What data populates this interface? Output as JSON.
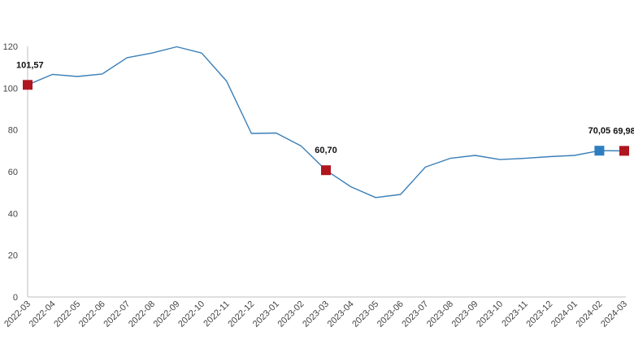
{
  "chart_data": {
    "type": "line",
    "title": "",
    "xlabel": "",
    "ylabel": "",
    "ylim": [
      0,
      120
    ],
    "yticks": [
      0,
      20,
      40,
      60,
      80,
      100,
      120
    ],
    "grid": false,
    "categories": [
      "2022-03",
      "2022-04",
      "2022-05",
      "2022-06",
      "2022-07",
      "2022-08",
      "2022-09",
      "2022-10",
      "2022-11",
      "2022-12",
      "2023-01",
      "2023-02",
      "2023-03",
      "2023-04",
      "2023-05",
      "2023-06",
      "2023-07",
      "2023-08",
      "2023-09",
      "2023-10",
      "2023-11",
      "2023-12",
      "2024-01",
      "2024-02",
      "2024-03"
    ],
    "series": [
      {
        "values": [
          101.57,
          106.6,
          105.6,
          106.8,
          114.6,
          116.8,
          119.8,
          116.8,
          103.4,
          78.3,
          78.5,
          72.3,
          60.7,
          52.8,
          47.6,
          49.1,
          62.2,
          66.4,
          67.8,
          65.8,
          66.4,
          67.2,
          67.8,
          70.05,
          69.98
        ],
        "color": "#3a7fb8"
      }
    ],
    "annotations": [
      {
        "index": 0,
        "label": "101,57",
        "marker_color": "#b0161e"
      },
      {
        "index": 12,
        "label": "60,70",
        "marker_color": "#b0161e"
      },
      {
        "index": 23,
        "label": "70,05",
        "marker_color": "#2e7dc0"
      },
      {
        "index": 24,
        "label": "69,98",
        "marker_color": "#b0161e"
      }
    ]
  }
}
